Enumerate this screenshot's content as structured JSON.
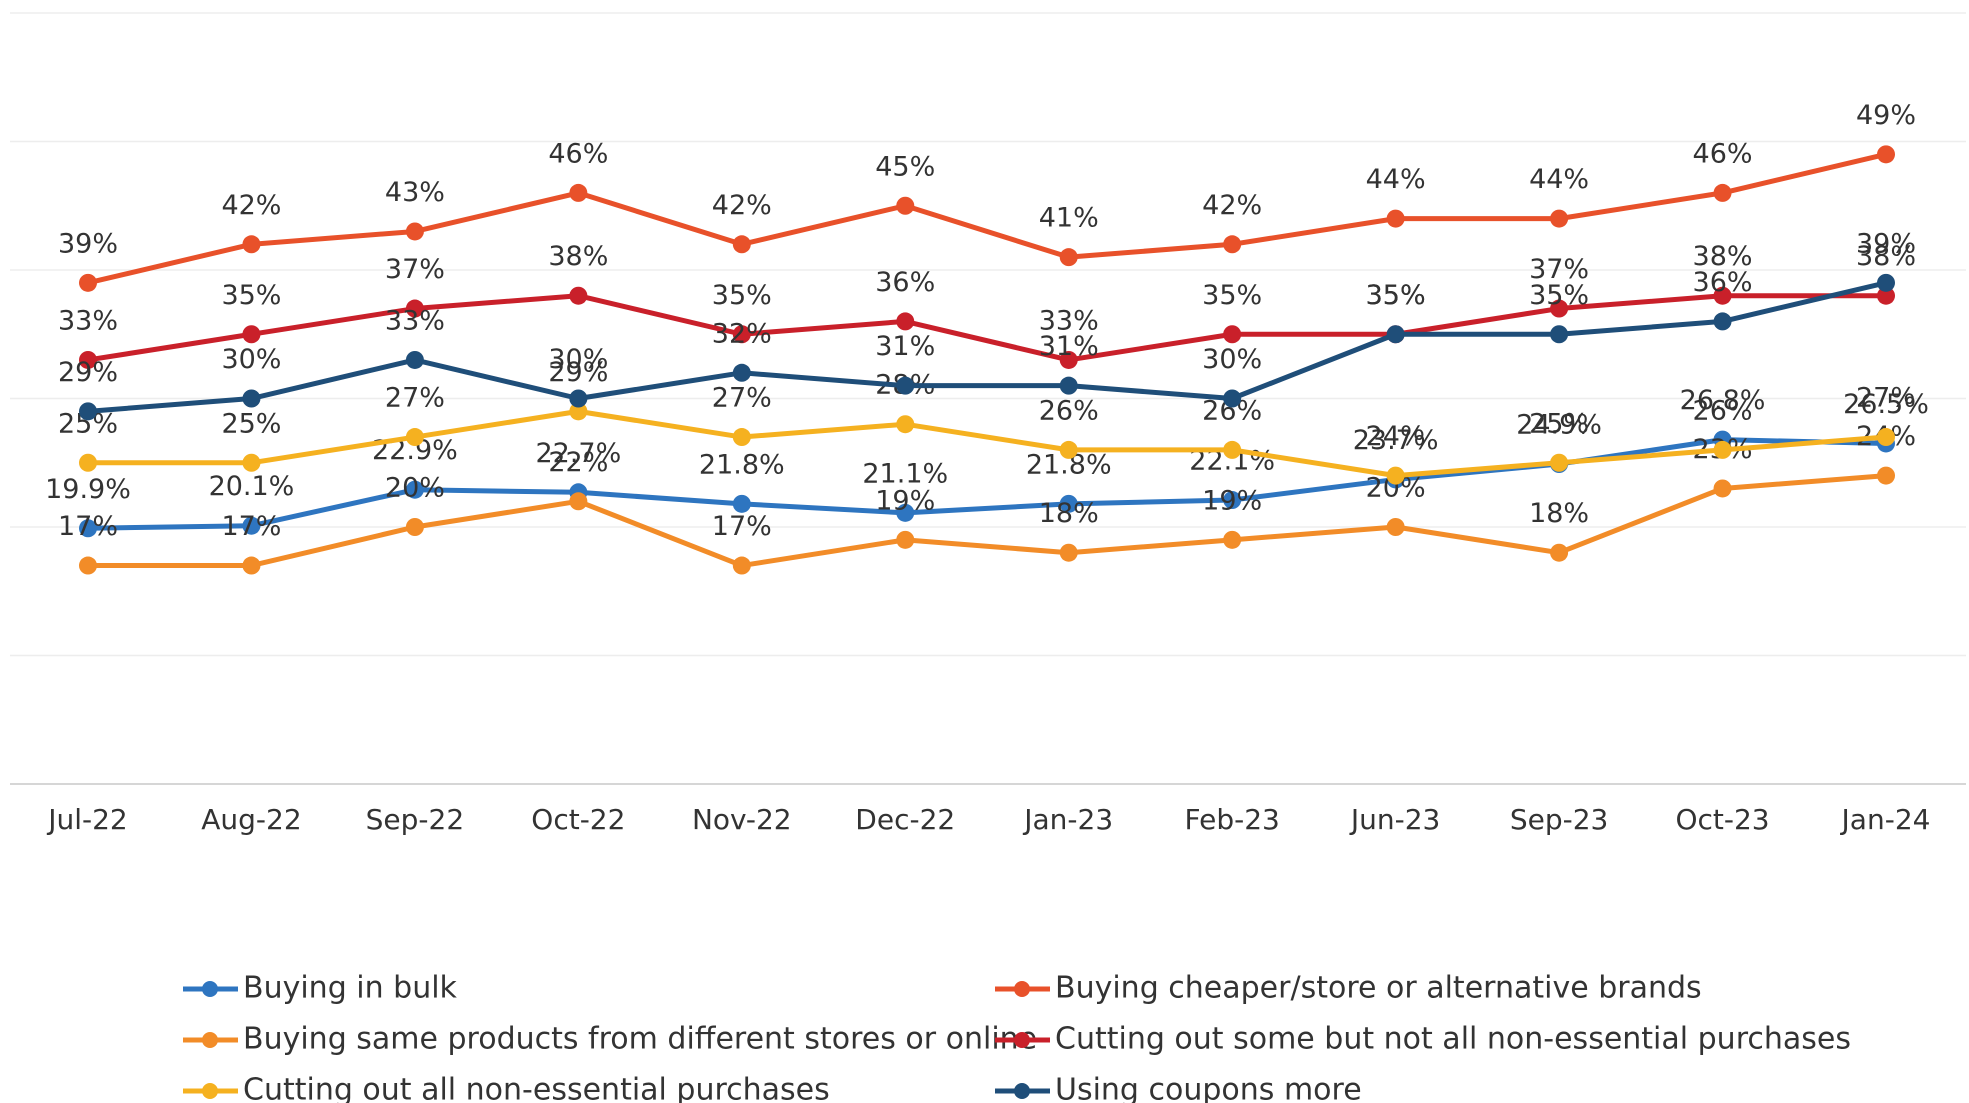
{
  "chart_data": {
    "type": "line",
    "categories": [
      "Jul-22",
      "Aug-22",
      "Sep-22",
      "Oct-22",
      "Nov-22",
      "Dec-22",
      "Jan-23",
      "Feb-23",
      "Jun-23",
      "Sep-23",
      "Oct-23",
      "Jan-24"
    ],
    "ylim": [
      0,
      60
    ],
    "yticks": [
      0,
      10,
      20,
      30,
      40,
      50,
      60
    ],
    "grid": true,
    "legend": "bottom",
    "series": [
      {
        "name": "Buying in bulk",
        "color": "#2e75c0",
        "values": [
          19.9,
          20.1,
          22.9,
          22.7,
          21.8,
          21.1,
          21.8,
          22.1,
          23.7,
          24.9,
          26.8,
          26.5
        ],
        "value_labels": [
          "19.9%",
          "20.1%",
          "22.9%",
          "22.7%",
          "21.8%",
          "21.1%",
          "21.8%",
          "22.1%",
          "23.7%",
          "24.9%",
          "26.8%",
          "26.5%"
        ]
      },
      {
        "name": "Buying cheaper/store or alternative brands",
        "color": "#e8512a",
        "values": [
          39,
          42,
          43,
          46,
          42,
          45,
          41,
          42,
          44,
          44,
          46,
          49
        ],
        "value_labels": [
          "39%",
          "42%",
          "43%",
          "46%",
          "42%",
          "45%",
          "41%",
          "42%",
          "44%",
          "44%",
          "46%",
          "49%"
        ]
      },
      {
        "name": "Buying same products from different stores or online",
        "color": "#f28c28",
        "values": [
          17,
          17,
          20,
          22,
          17,
          19,
          18,
          19,
          20,
          18,
          23,
          24
        ],
        "value_labels": [
          "17%",
          "17%",
          "20%",
          "22%",
          "17%",
          "19%",
          "18%",
          "19%",
          "20%",
          "18%",
          "23%",
          "24%"
        ]
      },
      {
        "name": "Cutting out some but not all non-essential purchases",
        "color": "#c9202a",
        "values": [
          33,
          35,
          37,
          38,
          35,
          36,
          33,
          35,
          35,
          37,
          38,
          38
        ],
        "value_labels": [
          "33%",
          "35%",
          "37%",
          "38%",
          "35%",
          "36%",
          "33%",
          "35%",
          "35%",
          "37%",
          "38%",
          "38%"
        ]
      },
      {
        "name": "Cutting out all non-essential purchases",
        "color": "#f5b120",
        "values": [
          25,
          25,
          27,
          29,
          27,
          28,
          26,
          26,
          24,
          25,
          26,
          27
        ],
        "value_labels": [
          "25%",
          "25%",
          "27%",
          "29%",
          "27%",
          "28%",
          "26%",
          "26%",
          "24%",
          "25%",
          "26%",
          "27%"
        ]
      },
      {
        "name": "Using coupons more",
        "color": "#1f4e79",
        "values": [
          29,
          30,
          33,
          30,
          32,
          31,
          31,
          30,
          35,
          35,
          36,
          39
        ],
        "value_labels": [
          "29%",
          "30%",
          "33%",
          "30%",
          "32%",
          "31%",
          "31%",
          "30%",
          "35%",
          "35%",
          "36%",
          "39%"
        ]
      }
    ]
  }
}
